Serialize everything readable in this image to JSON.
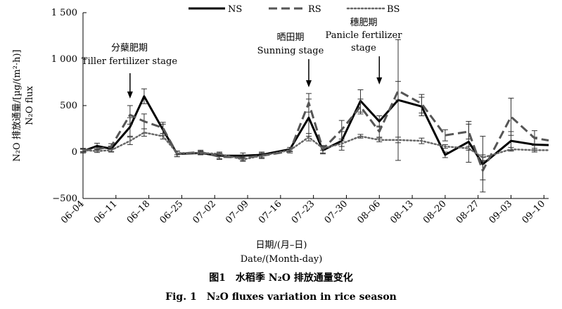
{
  "chart_data": {
    "type": "line",
    "ylabel_zh": "N₂O 排放通量/[µg/(m²·h)]",
    "ylabel_en": "N₂O flux",
    "xlabel_zh": "日期/(月–日)",
    "xlabel_en": "Date/(Month-day)",
    "ylim": [
      -500,
      1500
    ],
    "yticks": [
      -500,
      0,
      500,
      1000,
      1500
    ],
    "ytick_labels": [
      "−500",
      "0",
      "500",
      "1 000",
      "1 500"
    ],
    "x_day_range": [
      0,
      99
    ],
    "xticks": [
      {
        "label": "06–04",
        "day": 0
      },
      {
        "label": "06–11",
        "day": 7
      },
      {
        "label": "06–18",
        "day": 14
      },
      {
        "label": "06–25",
        "day": 21
      },
      {
        "label": "07–02",
        "day": 28
      },
      {
        "label": "07–09",
        "day": 35
      },
      {
        "label": "07–16",
        "day": 42
      },
      {
        "label": "07–23",
        "day": 49
      },
      {
        "label": "07–30",
        "day": 56
      },
      {
        "label": "08–06",
        "day": 63
      },
      {
        "label": "08–13",
        "day": 70
      },
      {
        "label": "08–20",
        "day": 77
      },
      {
        "label": "08–27",
        "day": 84
      },
      {
        "label": "09–03",
        "day": 91
      },
      {
        "label": "09–10",
        "day": 98
      }
    ],
    "x_dates": [
      "06-04",
      "06-07",
      "06-10",
      "06-14",
      "06-17",
      "06-21",
      "06-24",
      "06-29",
      "07-03",
      "07-08",
      "07-12",
      "07-18",
      "07-22",
      "07-25",
      "07-29",
      "08-02",
      "08-06",
      "08-10",
      "08-15",
      "08-20",
      "08-25",
      "08-28",
      "09-03",
      "09-08",
      "09-14"
    ],
    "x": [
      0,
      3,
      6,
      10,
      13,
      17,
      20,
      25,
      29,
      34,
      38,
      44,
      48,
      51,
      55,
      59,
      63,
      67,
      72,
      77,
      82,
      85,
      91,
      96,
      102
    ],
    "series": [
      {
        "name": "NS",
        "color": "#000000",
        "style": "solid",
        "values": [
          10,
          65,
          35,
          270,
          600,
          240,
          -20,
          -10,
          -40,
          -40,
          -30,
          30,
          370,
          20,
          120,
          550,
          330,
          560,
          490,
          -30,
          110,
          -130,
          120,
          80,
          70
        ],
        "errors": [
          20,
          30,
          30,
          100,
          80,
          60,
          30,
          20,
          30,
          30,
          30,
          20,
          200,
          40,
          100,
          120,
          60,
          650,
          100,
          30,
          220,
          300,
          100,
          80,
          80
        ]
      },
      {
        "name": "RS",
        "color": "#555555",
        "style": "dashed",
        "values": [
          20,
          30,
          60,
          400,
          330,
          260,
          -20,
          0,
          -50,
          -60,
          -40,
          10,
          530,
          30,
          240,
          490,
          220,
          660,
          520,
          180,
          220,
          -200,
          380,
          150,
          100
        ],
        "errors": [
          20,
          20,
          30,
          100,
          80,
          60,
          30,
          20,
          30,
          30,
          30,
          20,
          100,
          40,
          100,
          80,
          60,
          100,
          100,
          60,
          80,
          100,
          200,
          80,
          80
        ]
      },
      {
        "name": "BS",
        "color": "#666666",
        "style": "dotted",
        "values": [
          20,
          10,
          20,
          120,
          210,
          170,
          -10,
          -10,
          -20,
          -80,
          -40,
          20,
          160,
          40,
          90,
          170,
          130,
          130,
          120,
          60,
          40,
          -60,
          30,
          20,
          20
        ],
        "errors": [
          15,
          15,
          20,
          40,
          40,
          30,
          20,
          15,
          20,
          20,
          20,
          15,
          40,
          20,
          30,
          20,
          20,
          30,
          30,
          20,
          20,
          30,
          20,
          20,
          20
        ]
      }
    ],
    "legend_position": "top",
    "grid": false,
    "annotations": [
      {
        "zh": "分蘖肥期",
        "en": "Tiller fertilizer stage",
        "day": 10
      },
      {
        "zh": "晒田期",
        "en": "Sunning stage",
        "day": 48
      },
      {
        "zh": "穗肥期",
        "en": "Panicle fertilizer stage",
        "day": 63
      }
    ]
  },
  "caption_zh": "图1　水稻季 N₂O 排放通量变化",
  "caption_en": "Fig. 1　N₂O fluxes variation in rice season"
}
